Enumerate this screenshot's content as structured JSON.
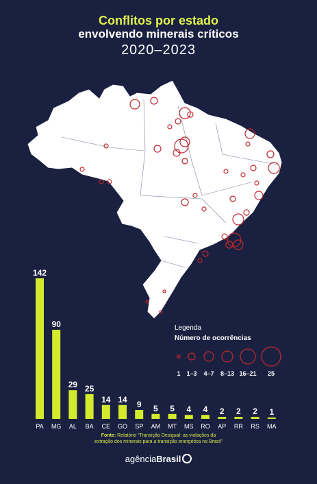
{
  "title": {
    "line1": "Conflitos por  estado",
    "line2": "envolvendo minerais críticos",
    "line3": "2020–2023"
  },
  "colors": {
    "background": "#1a2140",
    "bar": "#d4ea2e",
    "map_fill": "#ffffff",
    "circle": "#c0262d",
    "accent": "#e3f24a"
  },
  "legend": {
    "title": "Legenda",
    "subtitle": "Número de ocorrências",
    "items": [
      "1",
      "1–3",
      "4–7",
      "8–13",
      "16–21",
      "25"
    ]
  },
  "chart_data": {
    "type": "bar",
    "categories": [
      "PA",
      "MG",
      "AL",
      "BA",
      "CE",
      "GO",
      "SP",
      "AM",
      "MT",
      "MS",
      "RO",
      "AP",
      "RR",
      "RS",
      "MA"
    ],
    "values": [
      142,
      90,
      29,
      25,
      14,
      14,
      9,
      5,
      5,
      4,
      4,
      2,
      2,
      2,
      1
    ],
    "title": "Conflitos por estado envolvendo minerais críticos 2020–2023",
    "xlabel": "",
    "ylabel": "",
    "ylim": [
      0,
      142
    ]
  },
  "source": {
    "label": "Fonte:",
    "text1": "Relatório “Transição Desigual: as violações da",
    "text2": "extração dos minerais para a transição energética no Brasil”"
  },
  "logo": {
    "prefix": "agência",
    "name": "Brasil"
  }
}
